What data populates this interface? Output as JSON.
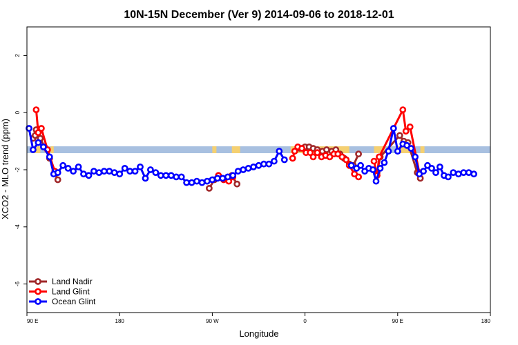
{
  "chart_data": {
    "type": "line",
    "title": "10N-15N December (Ver 9)   2014-09-06 to 2018-12-01",
    "xlabel": "Longitude",
    "ylabel": "XCO2 - MLO trend (ppm)",
    "x_ticks": [
      {
        "value": 90,
        "label": "90 E"
      },
      {
        "value": 180,
        "label": "180"
      },
      {
        "value": 270,
        "label": "90 W"
      },
      {
        "value": 360,
        "label": "0"
      },
      {
        "value": 450,
        "label": "90 E"
      },
      {
        "value": 540,
        "label": "180"
      }
    ],
    "y_ticks": [
      {
        "value": 2,
        "label": "2"
      },
      {
        "value": 0,
        "label": "0"
      },
      {
        "value": -2,
        "label": "-2"
      },
      {
        "value": -4,
        "label": "-4"
      },
      {
        "value": -6,
        "label": "-6"
      }
    ],
    "xlim": [
      90,
      540
    ],
    "ylim": [
      -7,
      3
    ],
    "grid": false,
    "legend_position": "bottom-left",
    "background_colors": {
      "ocean": "#a8c0e0",
      "land": "#f5d070"
    },
    "series": [
      {
        "name": "Land Nadir",
        "color": "#a0282a",
        "segments": [
          [
            [
              96,
              -0.9
            ],
            [
              98,
              -0.8
            ],
            [
              99,
              -0.6
            ],
            [
              101,
              -0.7
            ],
            [
              103,
              -0.9
            ],
            [
              107,
              -1.2
            ],
            [
              112,
              -1.6
            ],
            [
              120,
              -2.35
            ]
          ],
          [
            [
              267,
              -2.65
            ],
            [
              272,
              -2.35
            ],
            [
              276,
              -2.2
            ],
            [
              280,
              -2.3
            ],
            [
              285,
              -2.35
            ],
            [
              289,
              -2.2
            ],
            [
              294,
              -2.5
            ]
          ],
          [
            [
              355,
              -1.25
            ],
            [
              360,
              -1.2
            ],
            [
              364,
              -1.2
            ],
            [
              368,
              -1.25
            ],
            [
              372,
              -1.3
            ],
            [
              377,
              -1.35
            ],
            [
              381,
              -1.3
            ],
            [
              386,
              -1.35
            ],
            [
              390,
              -1.3
            ],
            [
              394,
              -1.45
            ],
            [
              398,
              -1.6
            ],
            [
              403,
              -1.8
            ],
            [
              407,
              -1.85
            ],
            [
              412,
              -1.45
            ]
          ],
          [
            [
              430,
              -2.1
            ],
            [
              433,
              -1.55
            ],
            [
              452,
              -0.8
            ],
            [
              456,
              -1.0
            ],
            [
              460,
              -1.05
            ],
            [
              469,
              -2.1
            ],
            [
              472,
              -2.3
            ]
          ]
        ]
      },
      {
        "name": "Land Glint",
        "color": "#ff0000",
        "segments": [
          [
            [
              99,
              0.1
            ],
            [
              101,
              -0.7
            ],
            [
              104,
              -0.55
            ],
            [
              110,
              -1.3
            ],
            [
              117,
              -2.05
            ]
          ],
          [
            [
              276,
              -2.2
            ],
            [
              281,
              -2.35
            ],
            [
              286,
              -2.4
            ],
            [
              290,
              -2.25
            ]
          ],
          [
            [
              348,
              -1.6
            ],
            [
              350,
              -1.35
            ],
            [
              353,
              -1.2
            ],
            [
              357,
              -1.25
            ],
            [
              361,
              -1.4
            ],
            [
              365,
              -1.4
            ],
            [
              368,
              -1.55
            ],
            [
              372,
              -1.4
            ],
            [
              376,
              -1.55
            ],
            [
              380,
              -1.5
            ],
            [
              384,
              -1.55
            ],
            [
              388,
              -1.45
            ],
            [
              392,
              -1.45
            ],
            [
              396,
              -1.55
            ],
            [
              400,
              -1.65
            ],
            [
              403,
              -1.85
            ],
            [
              408,
              -2.15
            ],
            [
              412,
              -2.25
            ]
          ],
          [
            [
              427,
              -1.7
            ],
            [
              430,
              -2.2
            ],
            [
              432,
              -1.55
            ],
            [
              455,
              0.1
            ],
            [
              458,
              -0.65
            ],
            [
              462,
              -0.5
            ],
            [
              471,
              -2.1
            ]
          ]
        ]
      },
      {
        "name": "Ocean Glint",
        "color": "#0000ff",
        "segments": [
          [
            [
              92,
              -0.55
            ],
            [
              96,
              -1.3
            ],
            [
              101,
              -1.05
            ],
            [
              106,
              -1.2
            ],
            [
              112,
              -1.55
            ],
            [
              116,
              -2.15
            ],
            [
              120,
              -2.1
            ],
            [
              125,
              -1.85
            ],
            [
              130,
              -1.95
            ],
            [
              135,
              -2.05
            ],
            [
              140,
              -1.9
            ],
            [
              145,
              -2.15
            ],
            [
              150,
              -2.2
            ],
            [
              155,
              -2.05
            ],
            [
              160,
              -2.1
            ],
            [
              165,
              -2.05
            ],
            [
              170,
              -2.05
            ],
            [
              175,
              -2.1
            ],
            [
              180,
              -2.15
            ],
            [
              185,
              -1.95
            ],
            [
              190,
              -2.05
            ],
            [
              195,
              -2.05
            ],
            [
              200,
              -1.9
            ],
            [
              205,
              -2.3
            ],
            [
              210,
              -2.0
            ],
            [
              215,
              -2.1
            ],
            [
              220,
              -2.2
            ],
            [
              225,
              -2.2
            ],
            [
              230,
              -2.2
            ],
            [
              235,
              -2.25
            ],
            [
              240,
              -2.25
            ],
            [
              245,
              -2.45
            ],
            [
              250,
              -2.45
            ],
            [
              255,
              -2.4
            ],
            [
              260,
              -2.45
            ],
            [
              265,
              -2.4
            ],
            [
              270,
              -2.35
            ],
            [
              275,
              -2.3
            ],
            [
              280,
              -2.3
            ],
            [
              285,
              -2.25
            ],
            [
              290,
              -2.2
            ],
            [
              295,
              -2.05
            ],
            [
              300,
              -2.0
            ],
            [
              305,
              -1.95
            ],
            [
              310,
              -1.9
            ],
            [
              315,
              -1.85
            ],
            [
              320,
              -1.8
            ],
            [
              325,
              -1.8
            ],
            [
              330,
              -1.7
            ],
            [
              335,
              -1.35
            ],
            [
              340,
              -1.65
            ]
          ],
          [
            [
              405,
              -1.85
            ],
            [
              410,
              -1.95
            ],
            [
              414,
              -1.85
            ],
            [
              418,
              -2.05
            ],
            [
              422,
              -1.95
            ],
            [
              426,
              -2.0
            ],
            [
              429,
              -2.4
            ],
            [
              433,
              -1.95
            ],
            [
              437,
              -1.75
            ],
            [
              441,
              -1.35
            ],
            [
              446,
              -0.55
            ],
            [
              450,
              -1.35
            ],
            [
              455,
              -1.1
            ],
            [
              459,
              -1.15
            ],
            [
              463,
              -1.25
            ],
            [
              467,
              -1.55
            ],
            [
              471,
              -2.15
            ],
            [
              475,
              -2.05
            ],
            [
              479,
              -1.85
            ],
            [
              483,
              -1.95
            ],
            [
              487,
              -2.1
            ],
            [
              491,
              -1.9
            ],
            [
              495,
              -2.2
            ],
            [
              499,
              -2.25
            ],
            [
              504,
              -2.1
            ],
            [
              509,
              -2.15
            ],
            [
              514,
              -2.1
            ],
            [
              519,
              -2.1
            ],
            [
              524,
              -2.15
            ]
          ]
        ]
      }
    ]
  }
}
